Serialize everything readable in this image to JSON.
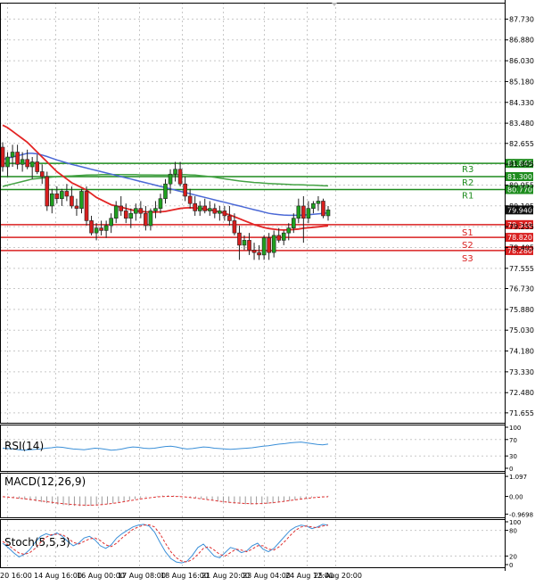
{
  "chart_data": [
    {
      "type": "candlestick",
      "panel": "price",
      "ylim": [
        71.25,
        88.4
      ],
      "yticks": [
        "87.730",
        "86.880",
        "86.030",
        "85.180",
        "84.330",
        "83.480",
        "82.655",
        "81.805",
        "80.955",
        "80.105",
        "79.255",
        "78.405",
        "77.555",
        "76.730",
        "75.880",
        "75.030",
        "74.180",
        "73.330",
        "72.480",
        "71.655"
      ],
      "x_labels": [
        "20 16:00",
        "14 Aug 16:00",
        "16 Aug 00:00",
        "17 Aug 08:00",
        "18 Aug 16:00",
        "21 Aug 20:00",
        "23 Aug 04:00",
        "24 Aug 12:00",
        "25 Aug 20:00"
      ],
      "levels": [
        {
          "name": "R3",
          "value": 81.84,
          "label": "81.840",
          "color": "#1e8c1e"
        },
        {
          "name": "R2",
          "value": 81.3,
          "label": "81.300",
          "color": "#1e8c1e"
        },
        {
          "name": "R1",
          "value": 80.77,
          "label": "80.770",
          "color": "#1e8c1e"
        },
        {
          "name": "S1",
          "value": 79.34,
          "label": "79.340",
          "color": "#d92020"
        },
        {
          "name": "S2",
          "value": 78.82,
          "label": "78.820",
          "color": "#d92020"
        },
        {
          "name": "S3",
          "value": 78.28,
          "label": "78.280",
          "color": "#d92020"
        }
      ],
      "current_price": {
        "value": 79.94,
        "label": "79.940"
      },
      "ohlc": [
        [
          82.5,
          82.7,
          81.5,
          81.7
        ],
        [
          81.7,
          82.3,
          81.3,
          82.1
        ],
        [
          82.1,
          82.6,
          81.7,
          82.3
        ],
        [
          82.3,
          82.6,
          81.6,
          81.8
        ],
        [
          81.8,
          82.3,
          81.5,
          82.0
        ],
        [
          82.0,
          82.4,
          81.6,
          81.7
        ],
        [
          81.7,
          82.1,
          81.2,
          81.9
        ],
        [
          81.9,
          82.2,
          81.4,
          81.5
        ],
        [
          81.5,
          81.8,
          81.0,
          81.3
        ],
        [
          81.3,
          81.5,
          79.9,
          80.1
        ],
        [
          80.1,
          80.8,
          79.8,
          80.6
        ],
        [
          80.6,
          80.9,
          80.2,
          80.4
        ],
        [
          80.4,
          80.8,
          80.1,
          80.7
        ],
        [
          80.7,
          81.0,
          80.3,
          80.5
        ],
        [
          80.5,
          80.9,
          80.0,
          80.1
        ],
        [
          80.1,
          80.4,
          79.7,
          80.0
        ],
        [
          80.0,
          80.8,
          79.8,
          80.7
        ],
        [
          80.7,
          80.9,
          79.3,
          79.5
        ],
        [
          79.5,
          79.7,
          78.9,
          79.0
        ],
        [
          79.0,
          79.4,
          78.7,
          79.2
        ],
        [
          79.2,
          79.5,
          78.9,
          79.1
        ],
        [
          79.1,
          79.5,
          78.8,
          79.3
        ],
        [
          79.3,
          79.8,
          79.0,
          79.6
        ],
        [
          79.6,
          80.3,
          79.4,
          80.1
        ],
        [
          80.1,
          80.5,
          79.7,
          79.9
        ],
        [
          79.9,
          80.2,
          79.4,
          79.6
        ],
        [
          79.6,
          80.0,
          79.2,
          79.8
        ],
        [
          79.8,
          80.2,
          79.5,
          80.0
        ],
        [
          80.0,
          80.3,
          79.6,
          79.8
        ],
        [
          79.8,
          80.1,
          79.1,
          79.3
        ],
        [
          79.3,
          80.0,
          79.1,
          79.9
        ],
        [
          79.9,
          80.3,
          79.6,
          80.0
        ],
        [
          80.0,
          80.6,
          79.8,
          80.4
        ],
        [
          80.4,
          81.2,
          80.2,
          81.0
        ],
        [
          81.0,
          81.6,
          80.6,
          81.4
        ],
        [
          81.4,
          81.9,
          81.1,
          81.6
        ],
        [
          81.6,
          81.9,
          80.9,
          81.0
        ],
        [
          81.0,
          81.3,
          80.3,
          80.5
        ],
        [
          80.5,
          80.8,
          80.0,
          80.2
        ],
        [
          80.2,
          80.5,
          79.7,
          79.9
        ],
        [
          79.9,
          80.3,
          79.7,
          80.1
        ],
        [
          80.1,
          80.4,
          79.8,
          79.9
        ],
        [
          79.9,
          80.3,
          79.7,
          80.0
        ],
        [
          80.0,
          80.2,
          79.6,
          79.8
        ],
        [
          79.8,
          80.1,
          79.5,
          79.9
        ],
        [
          79.9,
          80.1,
          79.5,
          79.7
        ],
        [
          79.7,
          80.1,
          79.3,
          79.5
        ],
        [
          79.5,
          79.8,
          78.9,
          79.0
        ],
        [
          79.0,
          79.3,
          77.9,
          78.5
        ],
        [
          78.5,
          78.9,
          78.3,
          78.7
        ],
        [
          78.7,
          79.0,
          78.1,
          78.3
        ],
        [
          78.3,
          78.6,
          77.9,
          78.2
        ],
        [
          78.2,
          78.5,
          77.9,
          78.1
        ],
        [
          78.1,
          78.9,
          77.9,
          78.8
        ],
        [
          78.8,
          79.0,
          77.9,
          78.2
        ],
        [
          78.2,
          79.1,
          78.0,
          78.9
        ],
        [
          78.9,
          79.2,
          78.6,
          78.7
        ],
        [
          78.7,
          79.1,
          78.5,
          79.0
        ],
        [
          79.0,
          79.4,
          78.7,
          79.2
        ],
        [
          79.2,
          79.8,
          79.0,
          79.6
        ],
        [
          79.6,
          80.4,
          79.4,
          80.1
        ],
        [
          80.1,
          80.5,
          78.6,
          79.6
        ],
        [
          79.6,
          80.3,
          79.4,
          80.0
        ],
        [
          80.0,
          80.3,
          79.8,
          80.2
        ],
        [
          80.2,
          80.5,
          79.9,
          80.3
        ],
        [
          80.3,
          80.4,
          79.6,
          79.7
        ],
        [
          79.7,
          80.1,
          79.5,
          79.94
        ]
      ],
      "ma_red": [
        83.4,
        83.3,
        83.15,
        83.0,
        82.85,
        82.7,
        82.5,
        82.3,
        82.1,
        81.9,
        81.7,
        81.5,
        81.35,
        81.2,
        81.05,
        80.95,
        80.85,
        80.75,
        80.6,
        80.45,
        80.35,
        80.25,
        80.15,
        80.1,
        80.05,
        80.0,
        79.95,
        79.9,
        79.88,
        79.86,
        79.85,
        79.85,
        79.86,
        79.88,
        79.92,
        79.96,
        80.0,
        80.02,
        80.03,
        80.02,
        80.0,
        79.97,
        79.94,
        79.9,
        79.86,
        79.8,
        79.74,
        79.66,
        79.58,
        79.5,
        79.42,
        79.34,
        79.28,
        79.22,
        79.18,
        79.15,
        79.13,
        79.12,
        79.13,
        79.14,
        79.16,
        79.19,
        79.21,
        79.23,
        79.25,
        79.27,
        79.29
      ],
      "ma_blue": [
        82.0,
        82.05,
        82.1,
        82.15,
        82.2,
        82.25,
        82.25,
        82.23,
        82.18,
        82.12,
        82.05,
        81.98,
        81.92,
        81.86,
        81.8,
        81.75,
        81.7,
        81.65,
        81.6,
        81.55,
        81.5,
        81.45,
        81.4,
        81.35,
        81.3,
        81.25,
        81.2,
        81.15,
        81.1,
        81.05,
        81.0,
        80.95,
        80.9,
        80.85,
        80.8,
        80.75,
        80.7,
        80.65,
        80.6,
        80.55,
        80.5,
        80.45,
        80.4,
        80.35,
        80.3,
        80.25,
        80.2,
        80.15,
        80.1,
        80.05,
        80.0,
        79.95,
        79.9,
        79.85,
        79.8,
        79.77,
        79.75,
        79.73,
        79.72,
        79.72,
        79.72,
        79.73,
        79.74,
        79.76,
        79.78,
        79.8,
        79.82
      ],
      "ma_green": [
        80.9,
        80.95,
        81.0,
        81.05,
        81.1,
        81.15,
        81.2,
        81.22,
        81.24,
        81.26,
        81.28,
        81.3,
        81.31,
        81.32,
        81.33,
        81.34,
        81.35,
        81.36,
        81.37,
        81.37,
        81.38,
        81.38,
        81.38,
        81.38,
        81.38,
        81.38,
        81.38,
        81.38,
        81.37,
        81.37,
        81.37,
        81.36,
        81.36,
        81.36,
        81.36,
        81.37,
        81.38,
        81.38,
        81.37,
        81.36,
        81.34,
        81.32,
        81.3,
        81.27,
        81.24,
        81.21,
        81.18,
        81.15,
        81.12,
        81.1,
        81.08,
        81.06,
        81.05,
        81.03,
        81.02,
        81.01,
        81.0,
        80.99,
        80.98,
        80.97,
        80.97,
        80.96,
        80.95,
        80.95,
        80.94,
        80.93,
        80.92
      ]
    },
    {
      "type": "line",
      "panel": "rsi",
      "name": "RSI(14)",
      "ylim": [
        0,
        100
      ],
      "yticks": [
        "100",
        "70",
        "30",
        "0"
      ],
      "values": [
        49,
        48,
        47,
        45,
        44,
        45,
        46,
        47,
        49,
        50,
        52,
        51,
        49,
        47,
        46,
        45,
        47,
        49,
        48,
        46,
        44,
        45,
        47,
        50,
        52,
        51,
        49,
        48,
        49,
        51,
        53,
        54,
        52,
        49,
        47,
        48,
        50,
        52,
        51,
        49,
        48,
        47,
        46,
        47,
        48,
        49,
        50,
        52,
        54,
        55,
        57,
        59,
        60,
        62,
        63,
        64,
        62,
        60,
        58,
        57,
        59
      ]
    },
    {
      "type": "bar+line",
      "panel": "macd",
      "name": "MACD(12,26,9)",
      "ylim": [
        -1.0,
        1.15
      ],
      "yticks": [
        "1.097",
        "0.00",
        "-0.9698"
      ],
      "histogram": [
        0.0,
        -0.04,
        -0.08,
        -0.12,
        -0.17,
        -0.22,
        -0.27,
        -0.32,
        -0.37,
        -0.41,
        -0.45,
        -0.48,
        -0.5,
        -0.52,
        -0.53,
        -0.53,
        -0.52,
        -0.5,
        -0.47,
        -0.43,
        -0.38,
        -0.33,
        -0.27,
        -0.21,
        -0.15,
        -0.09,
        -0.04,
        0.0,
        0.03,
        0.05,
        0.06,
        0.05,
        0.03,
        0.0,
        -0.04,
        -0.08,
        -0.13,
        -0.18,
        -0.23,
        -0.28,
        -0.32,
        -0.36,
        -0.39,
        -0.41,
        -0.43,
        -0.44,
        -0.44,
        -0.43,
        -0.41,
        -0.38,
        -0.34,
        -0.3,
        -0.25,
        -0.2,
        -0.15,
        -0.1,
        -0.06,
        -0.02,
        0.01,
        0.03
      ],
      "signal": [
        -0.02,
        -0.04,
        -0.07,
        -0.1,
        -0.13,
        -0.17,
        -0.21,
        -0.25,
        -0.29,
        -0.33,
        -0.37,
        -0.4,
        -0.43,
        -0.45,
        -0.47,
        -0.48,
        -0.48,
        -0.47,
        -0.45,
        -0.42,
        -0.38,
        -0.34,
        -0.29,
        -0.24,
        -0.19,
        -0.14,
        -0.1,
        -0.06,
        -0.03,
        -0.01,
        0.0,
        0.0,
        -0.01,
        -0.03,
        -0.06,
        -0.09,
        -0.13,
        -0.17,
        -0.21,
        -0.25,
        -0.29,
        -0.32,
        -0.35,
        -0.37,
        -0.39,
        -0.4,
        -0.4,
        -0.39,
        -0.37,
        -0.34,
        -0.31,
        -0.27,
        -0.23,
        -0.19,
        -0.15,
        -0.11,
        -0.08,
        -0.05,
        -0.03,
        -0.02
      ]
    },
    {
      "type": "line",
      "panel": "stoch",
      "name": "Stoch(5,5,3)",
      "ylim": [
        0,
        100
      ],
      "yticks": [
        "100",
        "80",
        "20",
        "0"
      ],
      "k": [
        50,
        40,
        28,
        18,
        24,
        35,
        52,
        66,
        72,
        68,
        74,
        66,
        54,
        44,
        50,
        62,
        66,
        58,
        44,
        38,
        46,
        62,
        72,
        80,
        88,
        92,
        94,
        90,
        76,
        52,
        30,
        14,
        6,
        4,
        8,
        22,
        40,
        48,
        34,
        20,
        16,
        28,
        40,
        36,
        28,
        32,
        44,
        50,
        36,
        30,
        38,
        52,
        66,
        80,
        88,
        92,
        90,
        84,
        88,
        94,
        92
      ],
      "d": [
        54,
        46,
        36,
        27,
        24,
        28,
        38,
        52,
        64,
        70,
        71,
        70,
        62,
        52,
        48,
        54,
        60,
        62,
        56,
        46,
        42,
        50,
        62,
        72,
        82,
        88,
        92,
        93,
        88,
        72,
        50,
        30,
        16,
        8,
        6,
        12,
        24,
        38,
        42,
        34,
        24,
        20,
        28,
        36,
        34,
        30,
        36,
        44,
        44,
        36,
        34,
        42,
        54,
        68,
        80,
        88,
        90,
        88,
        86,
        90,
        92
      ]
    }
  ],
  "labels": {
    "rsi_title": "RSI(14)",
    "macd_title": "MACD(12,26,9)",
    "stoch_title": "Stoch(5,5,3)"
  },
  "colors": {
    "bull": "#1fa01f",
    "bear": "#d81e1e",
    "ma_red": "#e32424",
    "ma_blue": "#4a68d6",
    "ma_green": "#44a244",
    "indicator": "#3a8fd8",
    "macd_signal": "#e03030",
    "grid": "#c8c8c8"
  }
}
